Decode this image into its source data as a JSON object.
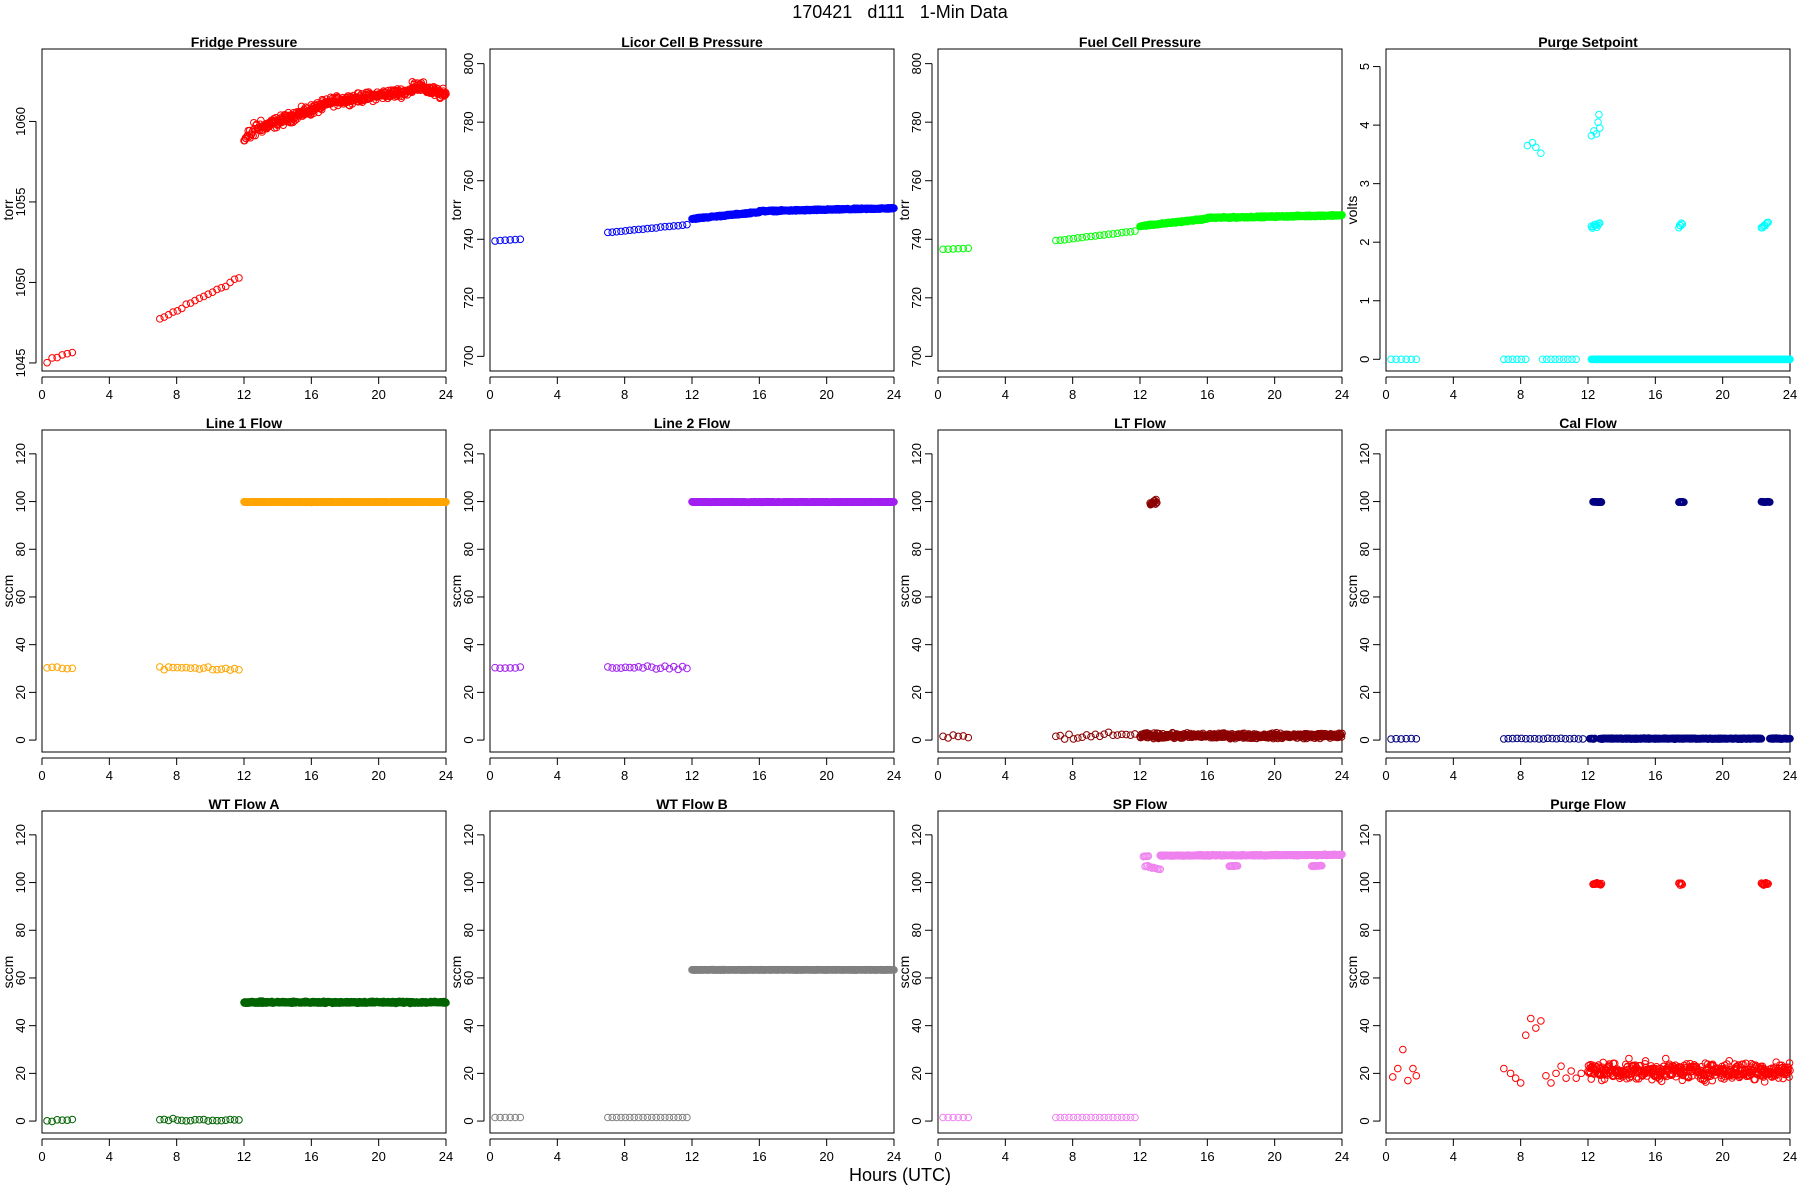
{
  "page": {
    "title": "170421   d111   1-Min Data",
    "xaxis_label": "Hours (UTC)"
  },
  "chart_data": [
    {
      "type": "scatter",
      "title": "Fridge Pressure",
      "ylabel": "torr",
      "color": "#ff0000",
      "xlim": [
        0,
        24
      ],
      "ylim": [
        1044.5,
        1064.5
      ],
      "xticks": [
        0,
        4,
        8,
        12,
        16,
        20,
        24
      ],
      "yticks": [
        1045,
        1050,
        1055,
        1060
      ],
      "segments": [
        {
          "x0": 0.3,
          "x1": 1.8,
          "y0": 1045.0,
          "y1": 1045.7,
          "n": 6,
          "noise": 0.25
        },
        {
          "x0": 7.0,
          "x1": 11.7,
          "y0": 1047.7,
          "y1": 1050.3,
          "n": 19,
          "noise": 0.15
        },
        {
          "x0": 12.0,
          "x1": 13.0,
          "y0": 1058.8,
          "y1": 1059.8,
          "n": 25,
          "noise": 0.6
        },
        {
          "x0": 13.0,
          "x1": 17.0,
          "y0": 1059.6,
          "y1": 1061.1,
          "n": 160,
          "noise": 0.4
        },
        {
          "x0": 17.0,
          "x1": 22.0,
          "y0": 1061.2,
          "y1": 1061.9,
          "n": 200,
          "noise": 0.35
        },
        {
          "x0": 22.0,
          "x1": 24.0,
          "y0": 1062.3,
          "y1": 1061.6,
          "n": 80,
          "noise": 0.4
        }
      ]
    },
    {
      "type": "scatter",
      "title": "Licor Cell B Pressure",
      "ylabel": "torr",
      "color": "#0000ff",
      "xlim": [
        0,
        24
      ],
      "ylim": [
        695,
        805
      ],
      "xticks": [
        0,
        4,
        8,
        12,
        16,
        20,
        24
      ],
      "yticks": [
        700,
        720,
        740,
        760,
        780,
        800
      ],
      "segments": [
        {
          "x0": 0.3,
          "x1": 1.8,
          "y0": 739.5,
          "y1": 740.0,
          "n": 6,
          "noise": 0.1
        },
        {
          "x0": 7.0,
          "x1": 11.7,
          "y0": 742.3,
          "y1": 745.0,
          "n": 19,
          "noise": 0.1
        },
        {
          "x0": 12.0,
          "x1": 16.0,
          "y0": 747.0,
          "y1": 749.3,
          "n": 160,
          "noise": 0.3
        },
        {
          "x0": 16.0,
          "x1": 24.0,
          "y0": 749.6,
          "y1": 750.6,
          "n": 320,
          "noise": 0.3
        }
      ]
    },
    {
      "type": "scatter",
      "title": "Fuel Cell Pressure",
      "ylabel": "torr",
      "color": "#00ff00",
      "xlim": [
        0,
        24
      ],
      "ylim": [
        695,
        805
      ],
      "xticks": [
        0,
        4,
        8,
        12,
        16,
        20,
        24
      ],
      "yticks": [
        700,
        720,
        740,
        760,
        780,
        800
      ],
      "segments": [
        {
          "x0": 0.3,
          "x1": 1.8,
          "y0": 736.5,
          "y1": 737.0,
          "n": 6,
          "noise": 0.1
        },
        {
          "x0": 7.0,
          "x1": 11.7,
          "y0": 739.5,
          "y1": 742.8,
          "n": 19,
          "noise": 0.1
        },
        {
          "x0": 12.0,
          "x1": 16.0,
          "y0": 744.5,
          "y1": 747.0,
          "n": 160,
          "noise": 0.3
        },
        {
          "x0": 16.0,
          "x1": 24.0,
          "y0": 747.3,
          "y1": 748.2,
          "n": 320,
          "noise": 0.3
        }
      ]
    },
    {
      "type": "scatter",
      "title": "Purge Setpoint",
      "ylabel": "volts",
      "color": "#00ffff",
      "xlim": [
        0,
        24
      ],
      "ylim": [
        -0.2,
        5.3
      ],
      "xticks": [
        0,
        4,
        8,
        12,
        16,
        20,
        24
      ],
      "yticks": [
        0,
        1,
        2,
        3,
        4,
        5
      ],
      "segments": [
        {
          "x0": 0.3,
          "x1": 1.8,
          "y0": 0,
          "y1": 0,
          "n": 6,
          "noise": 0
        },
        {
          "x0": 7.0,
          "x1": 8.3,
          "y0": 0,
          "y1": 0,
          "n": 6,
          "noise": 0
        },
        {
          "x0": 9.3,
          "x1": 11.3,
          "y0": 0,
          "y1": 0,
          "n": 9,
          "noise": 0
        },
        {
          "x0": 12.2,
          "x1": 24.0,
          "y0": 0,
          "y1": 0,
          "n": 420,
          "noise": 0
        },
        {
          "x0": 12.2,
          "x1": 12.7,
          "y0": 2.25,
          "y1": 2.32,
          "n": 10,
          "noise": 0.04
        },
        {
          "x0": 17.4,
          "x1": 17.6,
          "y0": 2.25,
          "y1": 2.32,
          "n": 5,
          "noise": 0.04
        },
        {
          "x0": 22.3,
          "x1": 22.7,
          "y0": 2.25,
          "y1": 2.32,
          "n": 8,
          "noise": 0.04
        }
      ],
      "points": [
        [
          8.4,
          3.65
        ],
        [
          8.7,
          3.7
        ],
        [
          8.9,
          3.62
        ],
        [
          9.2,
          3.52
        ],
        [
          12.2,
          3.82
        ],
        [
          12.35,
          3.9
        ],
        [
          12.5,
          3.85
        ],
        [
          12.6,
          4.05
        ],
        [
          12.65,
          4.18
        ],
        [
          12.7,
          3.95
        ]
      ]
    },
    {
      "type": "scatter",
      "title": "Line 1 Flow",
      "ylabel": "sccm",
      "color": "#ffa500",
      "xlim": [
        0,
        24
      ],
      "ylim": [
        -5,
        130
      ],
      "xticks": [
        0,
        4,
        8,
        12,
        16,
        20,
        24
      ],
      "yticks": [
        0,
        20,
        40,
        60,
        80,
        100,
        120
      ],
      "segments": [
        {
          "x0": 0.3,
          "x1": 1.8,
          "y0": 30.3,
          "y1": 30.3,
          "n": 6,
          "noise": 0.8
        },
        {
          "x0": 7.0,
          "x1": 11.7,
          "y0": 30.3,
          "y1": 29.8,
          "n": 19,
          "noise": 0.9
        },
        {
          "x0": 12.0,
          "x1": 24.0,
          "y0": 99.8,
          "y1": 99.8,
          "n": 480,
          "noise": 0.15
        }
      ]
    },
    {
      "type": "scatter",
      "title": "Line 2 Flow",
      "ylabel": "sccm",
      "color": "#a020f0",
      "xlim": [
        0,
        24
      ],
      "ylim": [
        -5,
        130
      ],
      "xticks": [
        0,
        4,
        8,
        12,
        16,
        20,
        24
      ],
      "yticks": [
        0,
        20,
        40,
        60,
        80,
        100,
        120
      ],
      "segments": [
        {
          "x0": 0.3,
          "x1": 1.8,
          "y0": 30.4,
          "y1": 30.4,
          "n": 6,
          "noise": 0.8
        },
        {
          "x0": 7.0,
          "x1": 11.7,
          "y0": 30.6,
          "y1": 30.0,
          "n": 19,
          "noise": 0.9
        },
        {
          "x0": 12.0,
          "x1": 24.0,
          "y0": 99.8,
          "y1": 99.8,
          "n": 480,
          "noise": 0.15
        }
      ]
    },
    {
      "type": "scatter",
      "title": "LT Flow",
      "ylabel": "sccm",
      "color": "#8b0000",
      "xlim": [
        0,
        24
      ],
      "ylim": [
        -5,
        130
      ],
      "xticks": [
        0,
        4,
        8,
        12,
        16,
        20,
        24
      ],
      "yticks": [
        0,
        20,
        40,
        60,
        80,
        100,
        120
      ],
      "segments": [
        {
          "x0": 0.3,
          "x1": 1.8,
          "y0": 1.5,
          "y1": 1.5,
          "n": 6,
          "noise": 1.4
        },
        {
          "x0": 7.0,
          "x1": 11.7,
          "y0": 1.2,
          "y1": 2.3,
          "n": 19,
          "noise": 1.3
        },
        {
          "x0": 12.0,
          "x1": 24.0,
          "y0": 1.8,
          "y1": 1.8,
          "n": 460,
          "noise": 1.3
        },
        {
          "x0": 12.6,
          "x1": 13.0,
          "y0": 99.0,
          "y1": 100.0,
          "n": 16,
          "noise": 1.3
        }
      ]
    },
    {
      "type": "scatter",
      "title": "Cal Flow",
      "ylabel": "sccm",
      "color": "#000080",
      "xlim": [
        0,
        24
      ],
      "ylim": [
        -5,
        130
      ],
      "xticks": [
        0,
        4,
        8,
        12,
        16,
        20,
        24
      ],
      "yticks": [
        0,
        20,
        40,
        60,
        80,
        100,
        120
      ],
      "segments": [
        {
          "x0": 0.3,
          "x1": 1.8,
          "y0": 0.6,
          "y1": 0.6,
          "n": 6,
          "noise": 0.2
        },
        {
          "x0": 7.0,
          "x1": 11.7,
          "y0": 0.6,
          "y1": 0.6,
          "n": 19,
          "noise": 0.2
        },
        {
          "x0": 12.1,
          "x1": 12.4,
          "y0": 0.6,
          "y1": 0.6,
          "n": 8,
          "noise": 0.2
        },
        {
          "x0": 12.7,
          "x1": 22.3,
          "y0": 0.6,
          "y1": 0.6,
          "n": 380,
          "noise": 0.25
        },
        {
          "x0": 22.8,
          "x1": 24.0,
          "y0": 0.6,
          "y1": 0.6,
          "n": 40,
          "noise": 0.25
        },
        {
          "x0": 12.3,
          "x1": 12.8,
          "y0": 99.8,
          "y1": 99.8,
          "n": 15,
          "noise": 0.2
        },
        {
          "x0": 17.4,
          "x1": 17.7,
          "y0": 99.8,
          "y1": 99.8,
          "n": 8,
          "noise": 0.2
        },
        {
          "x0": 22.3,
          "x1": 22.8,
          "y0": 99.8,
          "y1": 99.8,
          "n": 14,
          "noise": 0.2
        }
      ]
    },
    {
      "type": "scatter",
      "title": "WT Flow A",
      "ylabel": "sccm",
      "color": "#006400",
      "xlim": [
        0,
        24
      ],
      "ylim": [
        -5,
        130
      ],
      "xticks": [
        0,
        4,
        8,
        12,
        16,
        20,
        24
      ],
      "yticks": [
        0,
        20,
        40,
        60,
        80,
        100,
        120
      ],
      "segments": [
        {
          "x0": 0.3,
          "x1": 1.8,
          "y0": 0.5,
          "y1": 0.5,
          "n": 6,
          "noise": 0.7
        },
        {
          "x0": 7.0,
          "x1": 11.7,
          "y0": 0.6,
          "y1": 0.4,
          "n": 19,
          "noise": 0.7
        },
        {
          "x0": 12.0,
          "x1": 24.0,
          "y0": 49.8,
          "y1": 49.8,
          "n": 480,
          "noise": 0.5
        }
      ]
    },
    {
      "type": "scatter",
      "title": "WT Flow B",
      "ylabel": "sccm",
      "color": "#808080",
      "xlim": [
        0,
        24
      ],
      "ylim": [
        -5,
        130
      ],
      "xticks": [
        0,
        4,
        8,
        12,
        16,
        20,
        24
      ],
      "yticks": [
        0,
        20,
        40,
        60,
        80,
        100,
        120
      ],
      "segments": [
        {
          "x0": 0.3,
          "x1": 1.8,
          "y0": 1.5,
          "y1": 1.5,
          "n": 6,
          "noise": 0
        },
        {
          "x0": 7.0,
          "x1": 11.7,
          "y0": 1.5,
          "y1": 1.5,
          "n": 19,
          "noise": 0
        },
        {
          "x0": 12.0,
          "x1": 24.0,
          "y0": 63.4,
          "y1": 63.4,
          "n": 480,
          "noise": 0.1
        }
      ]
    },
    {
      "type": "scatter",
      "title": "SP Flow",
      "ylabel": "sccm",
      "color": "#ee82ee",
      "xlim": [
        0,
        24
      ],
      "ylim": [
        -5,
        130
      ],
      "xticks": [
        0,
        4,
        8,
        12,
        16,
        20,
        24
      ],
      "yticks": [
        0,
        20,
        40,
        60,
        80,
        100,
        120
      ],
      "segments": [
        {
          "x0": 0.3,
          "x1": 1.8,
          "y0": 1.5,
          "y1": 1.5,
          "n": 6,
          "noise": 0
        },
        {
          "x0": 7.0,
          "x1": 11.7,
          "y0": 1.5,
          "y1": 1.5,
          "n": 19,
          "noise": 0
        },
        {
          "x0": 12.2,
          "x1": 12.5,
          "y0": 111.0,
          "y1": 111.0,
          "n": 5,
          "noise": 0.2
        },
        {
          "x0": 12.3,
          "x1": 13.2,
          "y0": 107.0,
          "y1": 105.5,
          "n": 12,
          "noise": 0.4
        },
        {
          "x0": 13.2,
          "x1": 24.0,
          "y0": 111.3,
          "y1": 111.6,
          "n": 420,
          "noise": 0.3
        },
        {
          "x0": 17.3,
          "x1": 17.8,
          "y0": 107.0,
          "y1": 107.0,
          "n": 10,
          "noise": 0.3
        },
        {
          "x0": 22.2,
          "x1": 22.8,
          "y0": 107.0,
          "y1": 107.0,
          "n": 14,
          "noise": 0.3
        }
      ]
    },
    {
      "type": "scatter",
      "title": "Purge Flow",
      "ylabel": "sccm",
      "color": "#ff0000",
      "xlim": [
        0,
        24
      ],
      "ylim": [
        -5,
        130
      ],
      "xticks": [
        0,
        4,
        8,
        12,
        16,
        20,
        24
      ],
      "yticks": [
        0,
        20,
        40,
        60,
        80,
        100,
        120
      ],
      "segments": [
        {
          "x0": 12.0,
          "x1": 24.0,
          "y0": 21.0,
          "y1": 21.0,
          "n": 440,
          "noise": 4.5
        },
        {
          "x0": 12.3,
          "x1": 12.8,
          "y0": 99.5,
          "y1": 99.5,
          "n": 12,
          "noise": 0.6
        },
        {
          "x0": 17.4,
          "x1": 17.6,
          "y0": 99.5,
          "y1": 99.5,
          "n": 6,
          "noise": 0.6
        },
        {
          "x0": 22.3,
          "x1": 22.7,
          "y0": 99.5,
          "y1": 99.5,
          "n": 10,
          "noise": 0.6
        }
      ],
      "points": [
        [
          0.4,
          18.5
        ],
        [
          0.7,
          22
        ],
        [
          1.0,
          30
        ],
        [
          1.3,
          17
        ],
        [
          1.6,
          22
        ],
        [
          1.8,
          19
        ],
        [
          7.0,
          22
        ],
        [
          7.4,
          20
        ],
        [
          7.7,
          18
        ],
        [
          8.0,
          16
        ],
        [
          8.3,
          36
        ],
        [
          8.6,
          43
        ],
        [
          8.9,
          39
        ],
        [
          9.2,
          42
        ],
        [
          9.5,
          19
        ],
        [
          9.8,
          16
        ],
        [
          10.1,
          20
        ],
        [
          10.4,
          23
        ],
        [
          10.7,
          18
        ],
        [
          11.0,
          21
        ],
        [
          11.3,
          18
        ],
        [
          11.6,
          20
        ]
      ]
    }
  ]
}
